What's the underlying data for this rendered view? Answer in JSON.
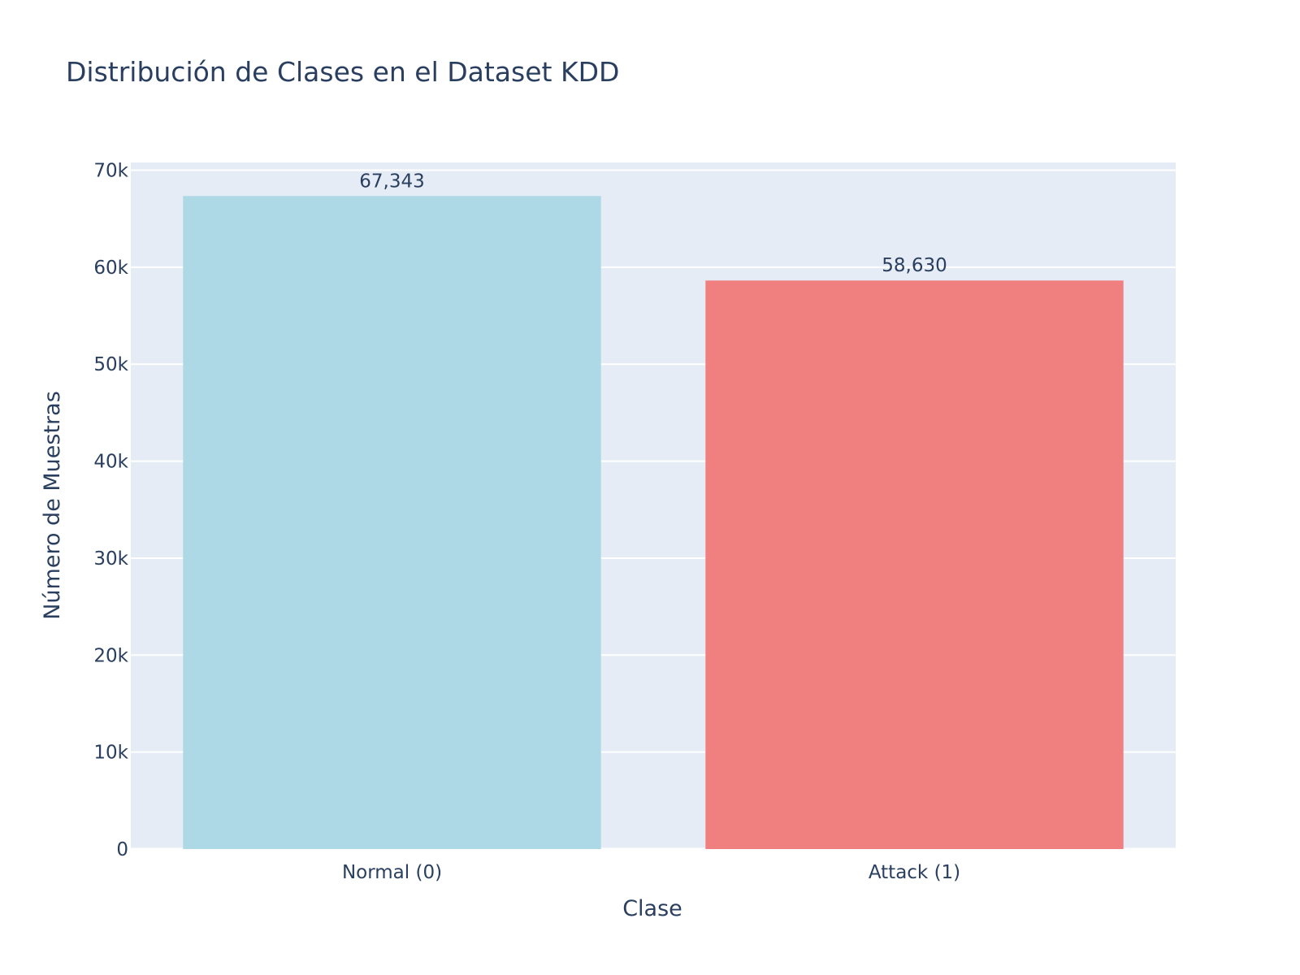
{
  "chart_data": {
    "type": "bar",
    "title": "Distribución de Clases en el Dataset KDD",
    "xlabel": "Clase",
    "ylabel": "Número de Muestras",
    "categories": [
      "Normal (0)",
      "Attack (1)"
    ],
    "values": [
      67343,
      58630
    ],
    "data_labels": [
      "67,343",
      "58,630"
    ],
    "colors": [
      "#add8e6",
      "#f08080"
    ],
    "ylim": [
      0,
      70800
    ],
    "yticks": [
      0,
      10000,
      20000,
      30000,
      40000,
      50000,
      60000,
      70000
    ],
    "ytick_labels": [
      "0",
      "10k",
      "20k",
      "30k",
      "40k",
      "50k",
      "60k",
      "70k"
    ],
    "grid": true,
    "legend": false,
    "plot_background": "#e5ecf6",
    "text_color": "#2a3f5f"
  }
}
